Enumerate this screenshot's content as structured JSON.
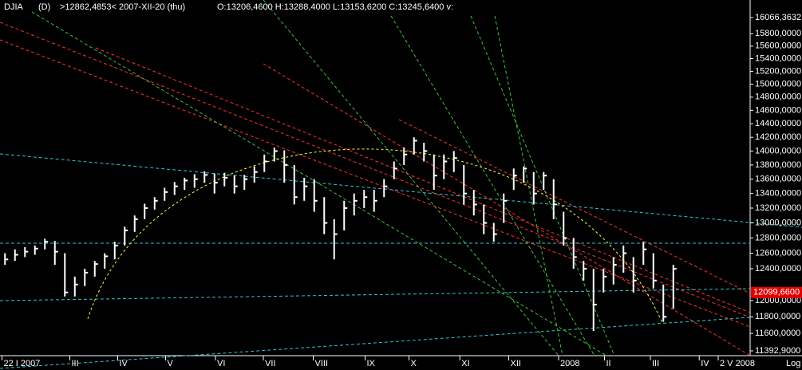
{
  "chart_data": {
    "type": "hlc",
    "symbol": "DJIA",
    "period": "(D)",
    "cursor_info": ">12862,4853< 2007-XII-20 (thu)",
    "ohlc_info": "O:13206,4600 H:13288,4000 L:13153,6200 C:13245,6400 v:",
    "scale_label": "Log",
    "log_scale": true,
    "color": "#ffffff",
    "high": [
      12600,
      12650,
      12680,
      12700,
      12790,
      12760,
      12600,
      12300,
      12400,
      12500,
      12600,
      12750,
      12950,
      13100,
      13260,
      13350,
      13480,
      13560,
      13620,
      13670,
      13710,
      13680,
      13690,
      13650,
      13660,
      13780,
      13950,
      14050,
      14010,
      13800,
      13620,
      13600,
      13350,
      13050,
      13300,
      13400,
      13450,
      13450,
      13600,
      13850,
      14050,
      14200,
      14120,
      13950,
      13950,
      14000,
      13800,
      13450,
      13250,
      13000,
      13400,
      13750,
      13780,
      13700,
      13700,
      13600,
      13150,
      12800,
      12500,
      12400,
      12400,
      12550,
      12700,
      12550,
      12750,
      12600,
      12200,
      12450
    ],
    "low": [
      12450,
      12500,
      12550,
      12580,
      12650,
      12450,
      12050,
      12050,
      12180,
      12300,
      12400,
      12520,
      12700,
      12880,
      13050,
      13180,
      13300,
      13380,
      13450,
      13480,
      13550,
      13400,
      13500,
      13400,
      13450,
      13550,
      13700,
      13850,
      13550,
      13250,
      13300,
      13150,
      12850,
      12520,
      12900,
      13100,
      13200,
      13150,
      13350,
      13600,
      13800,
      13950,
      13850,
      13450,
      13600,
      13700,
      13250,
      13100,
      12850,
      12750,
      13000,
      13450,
      13550,
      13250,
      13450,
      13050,
      12700,
      12400,
      12250,
      11630,
      12100,
      12200,
      12350,
      12100,
      12450,
      12150,
      11740,
      11900
    ],
    "close": [
      12520,
      12580,
      12620,
      12660,
      12750,
      12620,
      12100,
      12200,
      12350,
      12460,
      12560,
      12700,
      12900,
      13050,
      13200,
      13300,
      13420,
      13500,
      13580,
      13600,
      13660,
      13550,
      13620,
      13500,
      13600,
      13700,
      13850,
      14000,
      13800,
      13350,
      13500,
      13300,
      13000,
      12850,
      13200,
      13300,
      13350,
      13300,
      13500,
      13750,
      13950,
      14150,
      14000,
      13650,
      13850,
      13900,
      13400,
      13250,
      13000,
      12850,
      13300,
      13650,
      13750,
      13400,
      13650,
      13250,
      12800,
      12550,
      12400,
      11950,
      12300,
      12450,
      12600,
      12250,
      12650,
      12250,
      11800,
      12400
    ],
    "xlim": [
      -0.5,
      74.7
    ],
    "xticks": [
      {
        "value": -0.3,
        "label": "22 I 2007"
      },
      {
        "value": 6.5,
        "label": "III"
      },
      {
        "value": 11.3,
        "label": "IV"
      },
      {
        "value": 16.1,
        "label": "V"
      },
      {
        "value": 21.1,
        "label": "VI"
      },
      {
        "value": 25.9,
        "label": "VII"
      },
      {
        "value": 30.9,
        "label": "VIII"
      },
      {
        "value": 36.1,
        "label": "IX"
      },
      {
        "value": 40.5,
        "label": "X"
      },
      {
        "value": 45.6,
        "label": "XI"
      },
      {
        "value": 50.5,
        "label": "XII"
      },
      {
        "value": 55.5,
        "label": "2008"
      },
      {
        "value": 60.1,
        "label": "II"
      },
      {
        "value": 64.7,
        "label": "III"
      },
      {
        "value": 69.6,
        "label": "IV"
      },
      {
        "value": 71.5,
        "label": "2 V 2008"
      }
    ],
    "ylim": [
      11392.9,
      16066.3632
    ],
    "yticks": [
      {
        "value": 11392.9,
        "label": "11392,9000"
      },
      {
        "value": 11600,
        "label": "11600,0000"
      },
      {
        "value": 11800,
        "label": "11800,0000"
      },
      {
        "value": 12000,
        "label": "12000,0000"
      },
      {
        "value": 12400,
        "label": "12400,0000"
      },
      {
        "value": 12600,
        "label": "12600,0000"
      },
      {
        "value": 12800,
        "label": "12800,0000"
      },
      {
        "value": 13000,
        "label": "13000,0000"
      },
      {
        "value": 13200,
        "label": "13200,0000"
      },
      {
        "value": 13400,
        "label": "13400,0000"
      },
      {
        "value": 13600,
        "label": "13600,0000"
      },
      {
        "value": 13800,
        "label": "13800,0000"
      },
      {
        "value": 14000,
        "label": "14000,0000"
      },
      {
        "value": 14200,
        "label": "14200,0000"
      },
      {
        "value": 14400,
        "label": "14400,0000"
      },
      {
        "value": 14600,
        "label": "14600,0000"
      },
      {
        "value": 14800,
        "label": "14800,0000"
      },
      {
        "value": 15000,
        "label": "15000,0000"
      },
      {
        "value": 15200,
        "label": "15200,0000"
      },
      {
        "value": 15400,
        "label": "15400,0000"
      },
      {
        "value": 15600,
        "label": "15600,0000"
      },
      {
        "value": 15800,
        "label": "15800,0000"
      },
      {
        "value": 16066.3632,
        "label": "16066,3632"
      }
    ],
    "marker": {
      "value": 12099.66,
      "label": "12099,6600",
      "color": "#e00000"
    }
  }
}
